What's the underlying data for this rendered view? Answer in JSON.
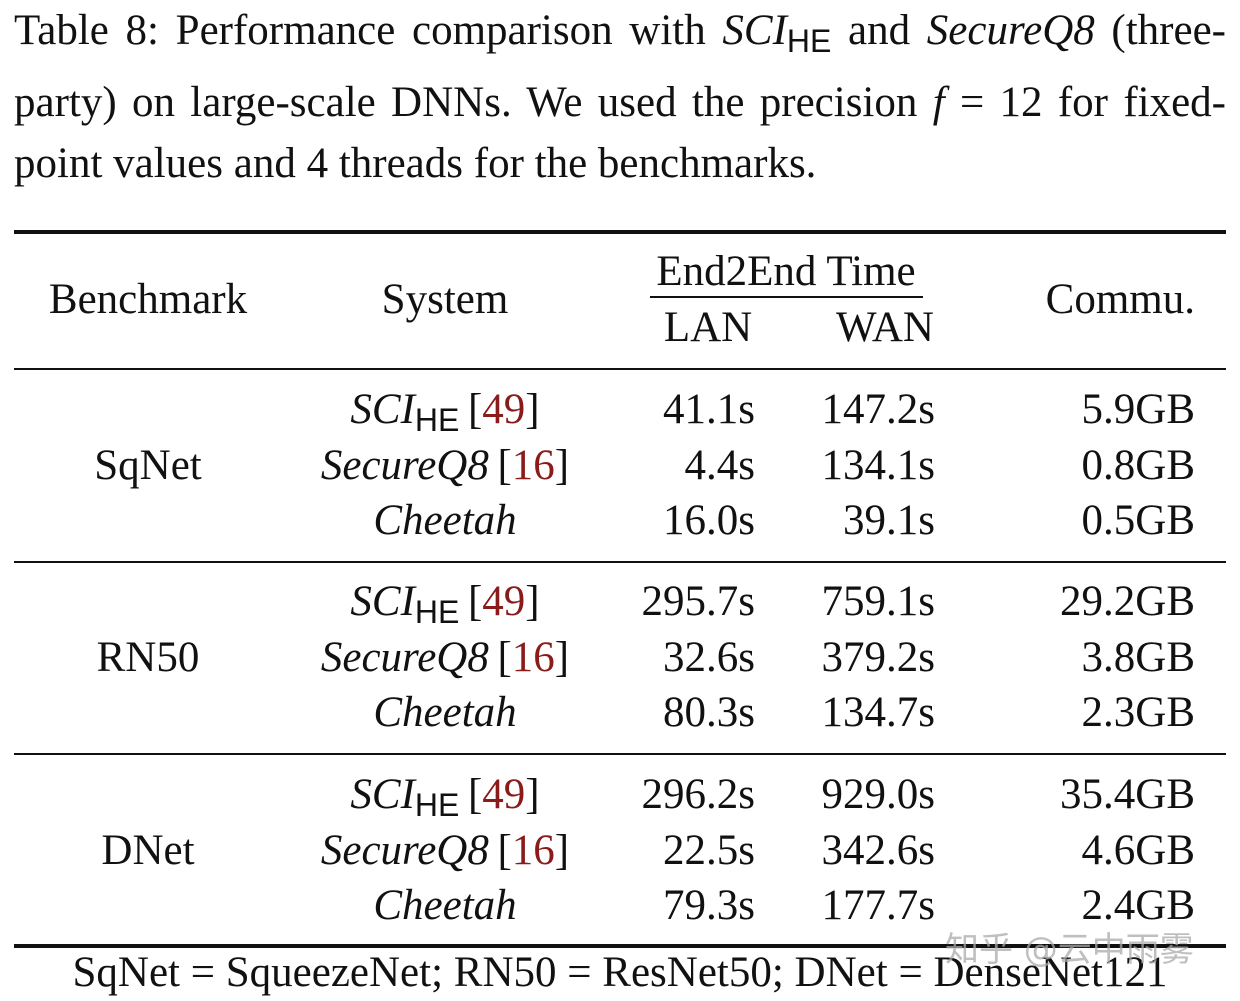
{
  "caption": {
    "parts": [
      {
        "text": "Table 8: Performance comparison with ",
        "style": "roman"
      },
      {
        "text": "SCI",
        "style": "italic"
      },
      {
        "text": "HE",
        "style": "sub"
      },
      {
        "text": " and ",
        "style": "roman"
      },
      {
        "text": "SecureQ8",
        "style": "italic"
      },
      {
        "text": " (three-party) on large-scale DNNs. We used the precision ",
        "style": "roman"
      },
      {
        "text": "f",
        "style": "italic"
      },
      {
        "text": " = 12 for fixed-point values and 4 threads for the benchmarks.",
        "style": "roman"
      }
    ]
  },
  "table": {
    "header": {
      "benchmark": "Benchmark",
      "system": "System",
      "time": "End2End Time",
      "lan": "LAN",
      "wan": "WAN",
      "comm": "Commu."
    },
    "groups": [
      {
        "benchmark": "SqNet",
        "rows": [
          {
            "system": {
              "name": "SCI",
              "subscript": "HE",
              "citation": [
                "[",
                "49",
                "]"
              ]
            },
            "lan": "41.1s",
            "wan": "147.2s",
            "comm": "5.9GB"
          },
          {
            "system": {
              "name": "SecureQ8",
              "citation": [
                "[",
                "16",
                "]"
              ]
            },
            "lan": "4.4s",
            "wan": "134.1s",
            "comm": "0.8GB"
          },
          {
            "system": {
              "name": "Cheetah"
            },
            "lan": "16.0s",
            "wan": "39.1s",
            "comm": "0.5GB"
          }
        ]
      },
      {
        "benchmark": "RN50",
        "rows": [
          {
            "system": {
              "name": "SCI",
              "subscript": "HE",
              "citation": [
                "[",
                "49",
                "]"
              ]
            },
            "lan": "295.7s",
            "wan": "759.1s",
            "comm": "29.2GB"
          },
          {
            "system": {
              "name": "SecureQ8",
              "citation": [
                "[",
                "16",
                "]"
              ]
            },
            "lan": "32.6s",
            "wan": "379.2s",
            "comm": "3.8GB"
          },
          {
            "system": {
              "name": "Cheetah"
            },
            "lan": "80.3s",
            "wan": "134.7s",
            "comm": "2.3GB"
          }
        ]
      },
      {
        "benchmark": "DNet",
        "rows": [
          {
            "system": {
              "name": "SCI",
              "subscript": "HE",
              "citation": [
                "[",
                "49",
                "]"
              ]
            },
            "lan": "296.2s",
            "wan": "929.0s",
            "comm": "35.4GB"
          },
          {
            "system": {
              "name": "SecureQ8",
              "citation": [
                "[",
                "16",
                "]"
              ]
            },
            "lan": "22.5s",
            "wan": "342.6s",
            "comm": "4.6GB"
          },
          {
            "system": {
              "name": "Cheetah"
            },
            "lan": "79.3s",
            "wan": "177.7s",
            "comm": "2.4GB"
          }
        ]
      }
    ],
    "footnote": "SqNet = SqueezeNet; RN50 = ResNet50; DNet = DenseNet121"
  },
  "watermark": "知乎 @云中雨雾"
}
